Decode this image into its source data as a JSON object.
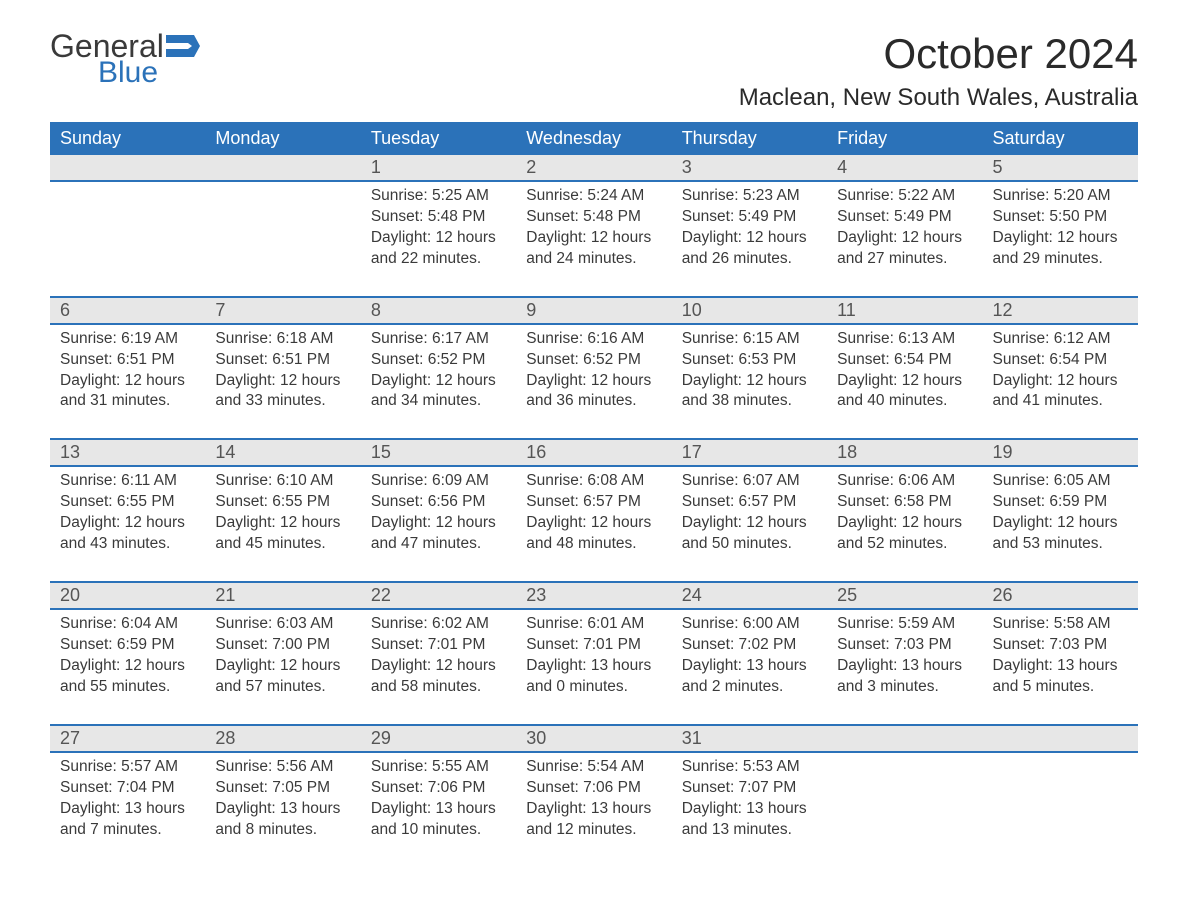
{
  "logo": {
    "text1": "General",
    "text2": "Blue",
    "flag_color": "#2b72b9"
  },
  "title": "October 2024",
  "location": "Maclean, New South Wales, Australia",
  "header_bg": "#2b72b9",
  "header_fg": "#ffffff",
  "daynum_bg": "#e7e7e7",
  "row_border": "#2b72b9",
  "weekday_labels": [
    "Sunday",
    "Monday",
    "Tuesday",
    "Wednesday",
    "Thursday",
    "Friday",
    "Saturday"
  ],
  "weeks": [
    [
      null,
      null,
      {
        "n": "1",
        "sunrise": "Sunrise: 5:25 AM",
        "sunset": "Sunset: 5:48 PM",
        "d1": "Daylight: 12 hours",
        "d2": "and 22 minutes."
      },
      {
        "n": "2",
        "sunrise": "Sunrise: 5:24 AM",
        "sunset": "Sunset: 5:48 PM",
        "d1": "Daylight: 12 hours",
        "d2": "and 24 minutes."
      },
      {
        "n": "3",
        "sunrise": "Sunrise: 5:23 AM",
        "sunset": "Sunset: 5:49 PM",
        "d1": "Daylight: 12 hours",
        "d2": "and 26 minutes."
      },
      {
        "n": "4",
        "sunrise": "Sunrise: 5:22 AM",
        "sunset": "Sunset: 5:49 PM",
        "d1": "Daylight: 12 hours",
        "d2": "and 27 minutes."
      },
      {
        "n": "5",
        "sunrise": "Sunrise: 5:20 AM",
        "sunset": "Sunset: 5:50 PM",
        "d1": "Daylight: 12 hours",
        "d2": "and 29 minutes."
      }
    ],
    [
      {
        "n": "6",
        "sunrise": "Sunrise: 6:19 AM",
        "sunset": "Sunset: 6:51 PM",
        "d1": "Daylight: 12 hours",
        "d2": "and 31 minutes."
      },
      {
        "n": "7",
        "sunrise": "Sunrise: 6:18 AM",
        "sunset": "Sunset: 6:51 PM",
        "d1": "Daylight: 12 hours",
        "d2": "and 33 minutes."
      },
      {
        "n": "8",
        "sunrise": "Sunrise: 6:17 AM",
        "sunset": "Sunset: 6:52 PM",
        "d1": "Daylight: 12 hours",
        "d2": "and 34 minutes."
      },
      {
        "n": "9",
        "sunrise": "Sunrise: 6:16 AM",
        "sunset": "Sunset: 6:52 PM",
        "d1": "Daylight: 12 hours",
        "d2": "and 36 minutes."
      },
      {
        "n": "10",
        "sunrise": "Sunrise: 6:15 AM",
        "sunset": "Sunset: 6:53 PM",
        "d1": "Daylight: 12 hours",
        "d2": "and 38 minutes."
      },
      {
        "n": "11",
        "sunrise": "Sunrise: 6:13 AM",
        "sunset": "Sunset: 6:54 PM",
        "d1": "Daylight: 12 hours",
        "d2": "and 40 minutes."
      },
      {
        "n": "12",
        "sunrise": "Sunrise: 6:12 AM",
        "sunset": "Sunset: 6:54 PM",
        "d1": "Daylight: 12 hours",
        "d2": "and 41 minutes."
      }
    ],
    [
      {
        "n": "13",
        "sunrise": "Sunrise: 6:11 AM",
        "sunset": "Sunset: 6:55 PM",
        "d1": "Daylight: 12 hours",
        "d2": "and 43 minutes."
      },
      {
        "n": "14",
        "sunrise": "Sunrise: 6:10 AM",
        "sunset": "Sunset: 6:55 PM",
        "d1": "Daylight: 12 hours",
        "d2": "and 45 minutes."
      },
      {
        "n": "15",
        "sunrise": "Sunrise: 6:09 AM",
        "sunset": "Sunset: 6:56 PM",
        "d1": "Daylight: 12 hours",
        "d2": "and 47 minutes."
      },
      {
        "n": "16",
        "sunrise": "Sunrise: 6:08 AM",
        "sunset": "Sunset: 6:57 PM",
        "d1": "Daylight: 12 hours",
        "d2": "and 48 minutes."
      },
      {
        "n": "17",
        "sunrise": "Sunrise: 6:07 AM",
        "sunset": "Sunset: 6:57 PM",
        "d1": "Daylight: 12 hours",
        "d2": "and 50 minutes."
      },
      {
        "n": "18",
        "sunrise": "Sunrise: 6:06 AM",
        "sunset": "Sunset: 6:58 PM",
        "d1": "Daylight: 12 hours",
        "d2": "and 52 minutes."
      },
      {
        "n": "19",
        "sunrise": "Sunrise: 6:05 AM",
        "sunset": "Sunset: 6:59 PM",
        "d1": "Daylight: 12 hours",
        "d2": "and 53 minutes."
      }
    ],
    [
      {
        "n": "20",
        "sunrise": "Sunrise: 6:04 AM",
        "sunset": "Sunset: 6:59 PM",
        "d1": "Daylight: 12 hours",
        "d2": "and 55 minutes."
      },
      {
        "n": "21",
        "sunrise": "Sunrise: 6:03 AM",
        "sunset": "Sunset: 7:00 PM",
        "d1": "Daylight: 12 hours",
        "d2": "and 57 minutes."
      },
      {
        "n": "22",
        "sunrise": "Sunrise: 6:02 AM",
        "sunset": "Sunset: 7:01 PM",
        "d1": "Daylight: 12 hours",
        "d2": "and 58 minutes."
      },
      {
        "n": "23",
        "sunrise": "Sunrise: 6:01 AM",
        "sunset": "Sunset: 7:01 PM",
        "d1": "Daylight: 13 hours",
        "d2": "and 0 minutes."
      },
      {
        "n": "24",
        "sunrise": "Sunrise: 6:00 AM",
        "sunset": "Sunset: 7:02 PM",
        "d1": "Daylight: 13 hours",
        "d2": "and 2 minutes."
      },
      {
        "n": "25",
        "sunrise": "Sunrise: 5:59 AM",
        "sunset": "Sunset: 7:03 PM",
        "d1": "Daylight: 13 hours",
        "d2": "and 3 minutes."
      },
      {
        "n": "26",
        "sunrise": "Sunrise: 5:58 AM",
        "sunset": "Sunset: 7:03 PM",
        "d1": "Daylight: 13 hours",
        "d2": "and 5 minutes."
      }
    ],
    [
      {
        "n": "27",
        "sunrise": "Sunrise: 5:57 AM",
        "sunset": "Sunset: 7:04 PM",
        "d1": "Daylight: 13 hours",
        "d2": "and 7 minutes."
      },
      {
        "n": "28",
        "sunrise": "Sunrise: 5:56 AM",
        "sunset": "Sunset: 7:05 PM",
        "d1": "Daylight: 13 hours",
        "d2": "and 8 minutes."
      },
      {
        "n": "29",
        "sunrise": "Sunrise: 5:55 AM",
        "sunset": "Sunset: 7:06 PM",
        "d1": "Daylight: 13 hours",
        "d2": "and 10 minutes."
      },
      {
        "n": "30",
        "sunrise": "Sunrise: 5:54 AM",
        "sunset": "Sunset: 7:06 PM",
        "d1": "Daylight: 13 hours",
        "d2": "and 12 minutes."
      },
      {
        "n": "31",
        "sunrise": "Sunrise: 5:53 AM",
        "sunset": "Sunset: 7:07 PM",
        "d1": "Daylight: 13 hours",
        "d2": "and 13 minutes."
      },
      null,
      null
    ]
  ]
}
